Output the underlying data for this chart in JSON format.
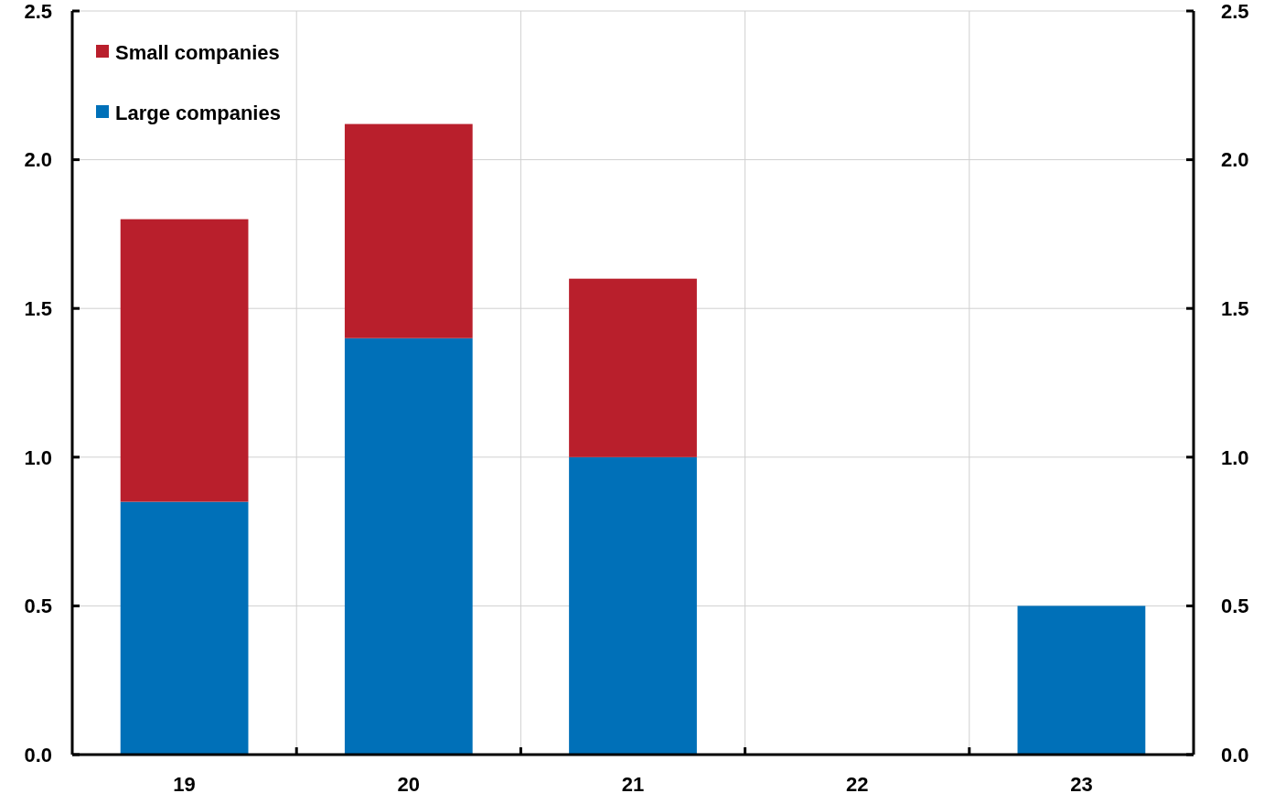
{
  "chart_data": {
    "type": "bar",
    "stacked": true,
    "categories": [
      "19",
      "20",
      "21",
      "22",
      "23"
    ],
    "series": [
      {
        "name": "Large companies",
        "color": "#0070b8",
        "values": [
          0.85,
          1.4,
          1.0,
          0,
          0.5
        ]
      },
      {
        "name": "Small companies",
        "color": "#b91f2c",
        "values": [
          0.95,
          0.72,
          0.6,
          0,
          0
        ]
      }
    ],
    "ylim": [
      0,
      2.5
    ],
    "yticks": [
      {
        "value": 0,
        "label": "0.0"
      },
      {
        "value": 0.5,
        "label": "0.5"
      },
      {
        "value": 1,
        "label": "1.0"
      },
      {
        "value": 1.5,
        "label": "1.5"
      },
      {
        "value": 2,
        "label": "2.0"
      },
      {
        "value": 2.5,
        "label": "2.5"
      }
    ],
    "y2lim": [
      0,
      2.5
    ],
    "y2ticks": [
      {
        "value": 0,
        "label": "0.0"
      },
      {
        "value": 0.5,
        "label": "0.5"
      },
      {
        "value": 1,
        "label": "1.0"
      },
      {
        "value": 1.5,
        "label": "1.5"
      },
      {
        "value": 2,
        "label": "2.0"
      },
      {
        "value": 2.5,
        "label": "2.5"
      }
    ],
    "grid": true,
    "legend": "top left"
  }
}
